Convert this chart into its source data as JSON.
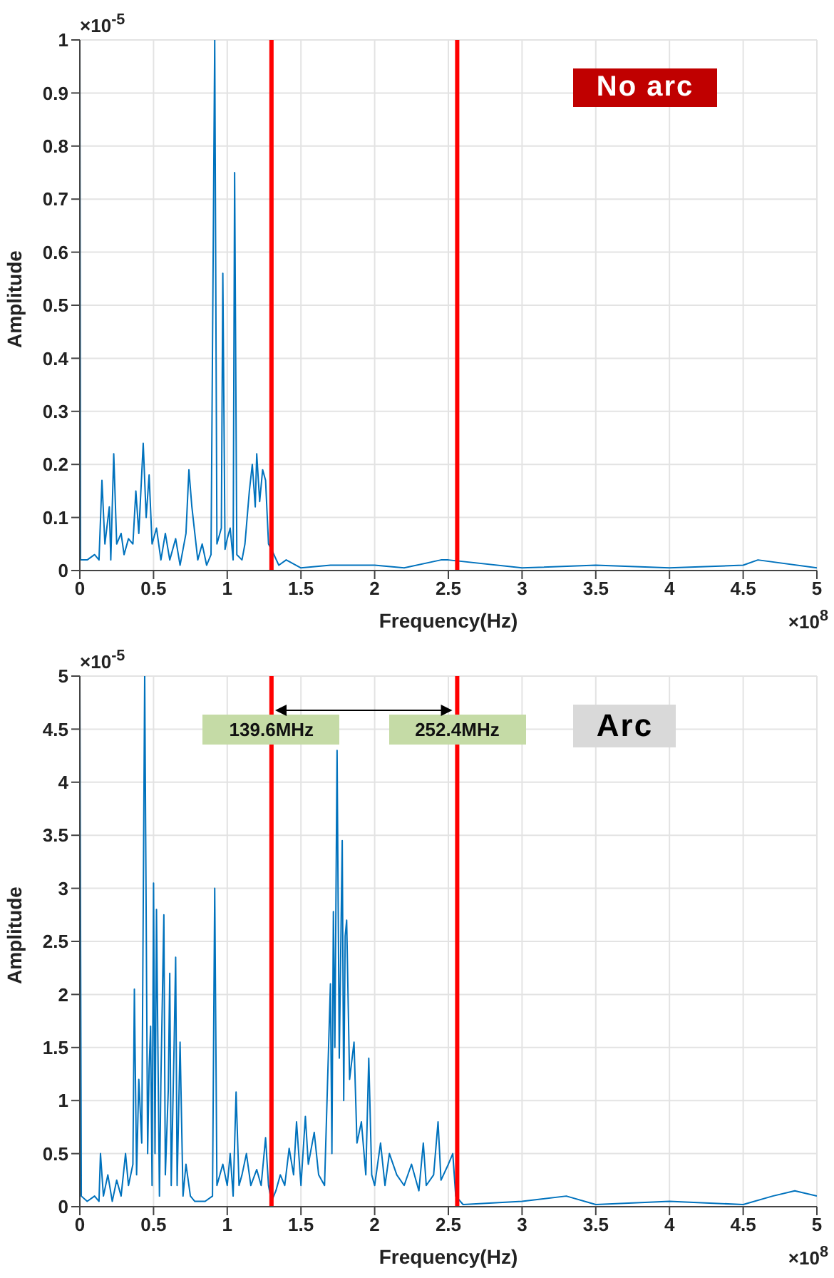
{
  "chart_data": [
    {
      "type": "line",
      "xlabel": "Frequency(Hz)",
      "ylabel": "Amplitude",
      "xlim": [
        0,
        5
      ],
      "xticks": [
        0,
        0.5,
        1,
        1.5,
        2,
        2.5,
        3,
        3.5,
        4,
        4.5,
        5
      ],
      "ylim": [
        0,
        1
      ],
      "yticks": [
        0,
        0.1,
        0.2,
        0.3,
        0.4,
        0.5,
        0.6,
        0.7,
        0.8,
        0.9,
        1
      ],
      "grid": true,
      "annotations": [
        "×10$^{-5}$",
        "×10$^{8}$",
        "No arc"
      ],
      "ref_lines": [
        {
          "axis": "x",
          "value": 1.3,
          "color": "#ff0000"
        },
        {
          "axis": "x",
          "value": 2.56,
          "color": "#ff0000"
        }
      ],
      "series": [
        {
          "color": "#0072bd",
          "x": [
            0,
            0.005,
            0.05,
            0.1,
            0.13,
            0.15,
            0.17,
            0.2,
            0.21,
            0.23,
            0.25,
            0.28,
            0.3,
            0.33,
            0.36,
            0.38,
            0.4,
            0.43,
            0.45,
            0.47,
            0.49,
            0.52,
            0.55,
            0.58,
            0.61,
            0.65,
            0.68,
            0.72,
            0.74,
            0.76,
            0.78,
            0.8,
            0.83,
            0.86,
            0.89,
            0.915,
            0.93,
            0.96,
            0.97,
            0.985,
            1.0,
            1.02,
            1.04,
            1.05,
            1.065,
            1.1,
            1.12,
            1.15,
            1.17,
            1.19,
            1.2,
            1.22,
            1.24,
            1.26,
            1.28,
            1.3,
            1.35,
            1.4,
            1.5,
            1.7,
            2.0,
            2.2,
            2.45,
            2.5,
            3.0,
            3.5,
            4.0,
            4.5,
            4.6,
            5.0
          ],
          "values": [
            1.0,
            0.02,
            0.02,
            0.03,
            0.02,
            0.17,
            0.05,
            0.12,
            0.02,
            0.22,
            0.05,
            0.07,
            0.03,
            0.06,
            0.05,
            0.15,
            0.07,
            0.24,
            0.1,
            0.18,
            0.05,
            0.08,
            0.02,
            0.07,
            0.02,
            0.06,
            0.01,
            0.07,
            0.19,
            0.12,
            0.07,
            0.02,
            0.05,
            0.01,
            0.03,
            1.0,
            0.05,
            0.08,
            0.56,
            0.04,
            0.06,
            0.08,
            0.02,
            0.75,
            0.03,
            0.02,
            0.05,
            0.15,
            0.2,
            0.12,
            0.22,
            0.13,
            0.19,
            0.17,
            0.05,
            0.04,
            0.01,
            0.02,
            0.005,
            0.01,
            0.01,
            0.005,
            0.02,
            0.02,
            0.005,
            0.01,
            0.005,
            0.01,
            0.02,
            0.005
          ]
        }
      ]
    },
    {
      "type": "line",
      "xlabel": "Frequency(Hz)",
      "ylabel": "Amplitude",
      "xlim": [
        0,
        5
      ],
      "xticks": [
        0,
        0.5,
        1,
        1.5,
        2,
        2.5,
        3,
        3.5,
        4,
        4.5,
        5
      ],
      "ylim": [
        0,
        5
      ],
      "yticks": [
        0,
        0.5,
        1,
        1.5,
        2,
        2.5,
        3,
        3.5,
        4,
        4.5,
        5
      ],
      "grid": true,
      "annotations": [
        "×10$^{-5}$",
        "×10$^{8}$",
        "Arc",
        {
          "text": "139.6MHz",
          "x": 1.3,
          "y": 4.5
        },
        {
          "text": "252.4MHz",
          "x": 2.56,
          "y": 4.5
        }
      ],
      "ref_lines": [
        {
          "axis": "x",
          "value": 1.3,
          "color": "#ff0000"
        },
        {
          "axis": "x",
          "value": 2.56,
          "color": "#ff0000"
        }
      ],
      "series": [
        {
          "color": "#0072bd",
          "x": [
            0,
            0.01,
            0.05,
            0.1,
            0.13,
            0.14,
            0.16,
            0.19,
            0.22,
            0.25,
            0.28,
            0.31,
            0.33,
            0.36,
            0.37,
            0.385,
            0.4,
            0.42,
            0.44,
            0.46,
            0.47,
            0.48,
            0.49,
            0.5,
            0.51,
            0.52,
            0.54,
            0.55,
            0.57,
            0.58,
            0.6,
            0.61,
            0.62,
            0.64,
            0.65,
            0.66,
            0.68,
            0.7,
            0.72,
            0.75,
            0.78,
            0.85,
            0.9,
            0.915,
            0.93,
            0.97,
            1.0,
            1.02,
            1.04,
            1.06,
            1.08,
            1.1,
            1.13,
            1.16,
            1.2,
            1.23,
            1.26,
            1.28,
            1.3,
            1.33,
            1.36,
            1.39,
            1.42,
            1.45,
            1.47,
            1.5,
            1.53,
            1.55,
            1.59,
            1.62,
            1.66,
            1.7,
            1.71,
            1.72,
            1.73,
            1.745,
            1.76,
            1.78,
            1.79,
            1.8,
            1.81,
            1.83,
            1.86,
            1.88,
            1.91,
            1.94,
            1.96,
            1.98,
            2.0,
            2.04,
            2.07,
            2.1,
            2.15,
            2.2,
            2.25,
            2.3,
            2.33,
            2.35,
            2.4,
            2.43,
            2.45,
            2.5,
            2.53,
            2.55,
            2.6,
            3.0,
            3.3,
            3.5,
            4.0,
            4.5,
            4.7,
            4.85,
            5.0
          ],
          "values": [
            5.0,
            0.1,
            0.05,
            0.1,
            0.05,
            0.5,
            0.1,
            0.3,
            0.05,
            0.25,
            0.1,
            0.5,
            0.2,
            0.4,
            2.05,
            0.3,
            1.2,
            0.6,
            5.0,
            0.5,
            1.3,
            1.7,
            0.2,
            3.05,
            0.5,
            2.8,
            0.1,
            1.2,
            2.75,
            0.3,
            1.1,
            2.2,
            0.2,
            1.55,
            2.35,
            0.2,
            1.55,
            0.1,
            0.4,
            0.1,
            0.05,
            0.05,
            0.1,
            3.0,
            0.2,
            0.4,
            0.2,
            0.5,
            0.1,
            1.08,
            0.2,
            0.3,
            0.5,
            0.2,
            0.35,
            0.2,
            0.65,
            0.2,
            0.05,
            0.15,
            0.3,
            0.2,
            0.55,
            0.3,
            0.8,
            0.2,
            0.85,
            0.4,
            0.7,
            0.3,
            0.2,
            2.1,
            0.5,
            2.78,
            1.5,
            4.3,
            1.4,
            3.45,
            1.0,
            2.55,
            2.7,
            1.2,
            1.55,
            0.6,
            0.8,
            0.3,
            1.4,
            0.3,
            0.2,
            0.6,
            0.2,
            0.5,
            0.3,
            0.2,
            0.4,
            0.15,
            0.6,
            0.2,
            0.3,
            0.8,
            0.25,
            0.4,
            0.5,
            0.1,
            0.02,
            0.05,
            0.1,
            0.02,
            0.05,
            0.02,
            0.1,
            0.15,
            0.1
          ]
        }
      ]
    }
  ]
}
